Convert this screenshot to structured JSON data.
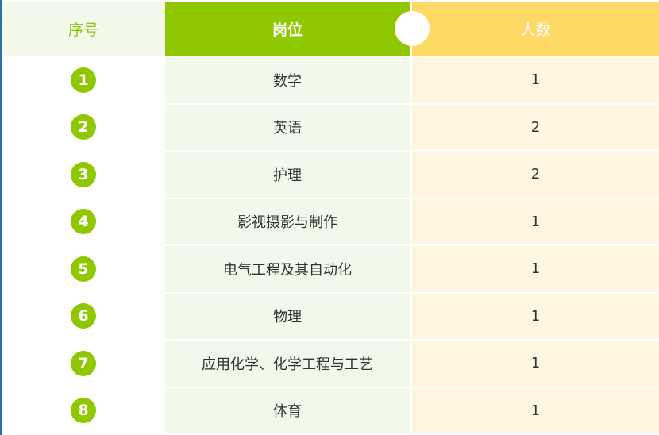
{
  "header": {
    "index": "序号",
    "position": "岗位",
    "count": "人数"
  },
  "colors": {
    "green": "#8fc800",
    "yellow": "#ffd966",
    "light_green": "#f3f9ea",
    "light_yellow": "#fff6df"
  },
  "rows": [
    {
      "index": "1",
      "position": "数学",
      "count": "1"
    },
    {
      "index": "2",
      "position": "英语",
      "count": "2"
    },
    {
      "index": "3",
      "position": "护理",
      "count": "2"
    },
    {
      "index": "4",
      "position": "影视摄影与制作",
      "count": "1"
    },
    {
      "index": "5",
      "position": "电气工程及其自动化",
      "count": "1"
    },
    {
      "index": "6",
      "position": "物理",
      "count": "1"
    },
    {
      "index": "7",
      "position": "应用化学、化学工程与工艺",
      "count": "1"
    },
    {
      "index": "8",
      "position": "体育",
      "count": "1"
    }
  ]
}
